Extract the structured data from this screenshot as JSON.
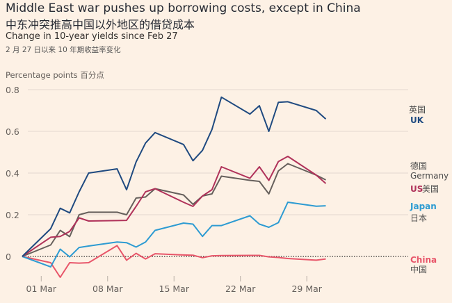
{
  "chart_data": {
    "type": "line",
    "title": "Middle East war pushes up borrowing costs, except in China",
    "title_zh": "中东冲突推高中国以外地区的借贷成本",
    "subtitle": "Change in 10-year yields since Feb 27",
    "subtitle_zh": "2 月 27 日以来 10 年期收益率变化",
    "ylabel": "Percentage points 百分点",
    "ylim": [
      -0.12,
      0.8
    ],
    "yticks": [
      "0.8",
      "0.6",
      "0.4",
      "0.2",
      "0"
    ],
    "ytick_values": [
      0.8,
      0.6,
      0.4,
      0.2,
      0
    ],
    "xticks": [
      "01 Mar",
      "08 Mar",
      "15 Mar",
      "22 Mar",
      "29 Mar"
    ],
    "xtick_dates": [
      "Mar 01",
      "Mar 08",
      "Mar 15",
      "Mar 22",
      "Mar 29"
    ],
    "grid": true,
    "zero_line": "dotted",
    "legend": "right, inline labels",
    "x": [
      "Feb 27",
      "Mar 02",
      "Mar 03",
      "Mar 04",
      "Mar 05",
      "Mar 06",
      "Mar 09",
      "Mar 10",
      "Mar 11",
      "Mar 12",
      "Mar 13",
      "Mar 16",
      "Mar 17",
      "Mar 18",
      "Mar 19",
      "Mar 20",
      "Mar 23",
      "Mar 24",
      "Mar 25",
      "Mar 26",
      "Mar 27",
      "Mar 30",
      "Mar 31"
    ],
    "series": [
      {
        "name": "UK",
        "name_zh": "英国",
        "color": "#1f4a80",
        "values": [
          0,
          0.133,
          0.231,
          0.209,
          0.31,
          0.4,
          0.42,
          0.32,
          0.453,
          0.544,
          0.594,
          0.537,
          0.459,
          0.509,
          0.609,
          0.764,
          0.683,
          0.723,
          0.6,
          0.739,
          0.742,
          0.7,
          0.659
        ]
      },
      {
        "name": "Germany",
        "name_zh": "德国",
        "color": "#66605c",
        "values": [
          0,
          0.055,
          0.125,
          0.095,
          0.2,
          0.212,
          0.212,
          0.2,
          0.28,
          0.285,
          0.325,
          0.295,
          0.25,
          0.29,
          0.3,
          0.385,
          0.365,
          0.36,
          0.3,
          0.41,
          0.445,
          0.39,
          0.367
        ]
      },
      {
        "name": "US",
        "name_zh": "美国",
        "color": "#b0325a",
        "values": [
          0,
          0.092,
          0.096,
          0.12,
          0.185,
          0.17,
          0.172,
          0.173,
          0.24,
          0.31,
          0.325,
          0.26,
          0.24,
          0.29,
          0.32,
          0.43,
          0.375,
          0.43,
          0.365,
          0.455,
          0.48,
          0.39,
          0.35
        ]
      },
      {
        "name": "Japan",
        "name_zh": "日本",
        "color": "#2d9bd2",
        "values": [
          0,
          -0.05,
          0.035,
          -0.002,
          0.043,
          0.05,
          0.069,
          0.066,
          0.045,
          0.069,
          0.125,
          0.16,
          0.155,
          0.096,
          0.148,
          0.148,
          0.195,
          0.155,
          0.14,
          0.162,
          0.26,
          0.241,
          0.243
        ]
      },
      {
        "name": "China",
        "name_zh": "中国",
        "color": "#e8566a",
        "values": [
          0,
          -0.03,
          -0.1,
          -0.03,
          -0.032,
          -0.03,
          0.052,
          -0.018,
          0.015,
          -0.012,
          0.013,
          0.007,
          0.006,
          -0.006,
          0.003,
          0.004,
          0.005,
          0.005,
          -0.002,
          -0.005,
          -0.01,
          -0.018,
          -0.012
        ]
      }
    ]
  }
}
